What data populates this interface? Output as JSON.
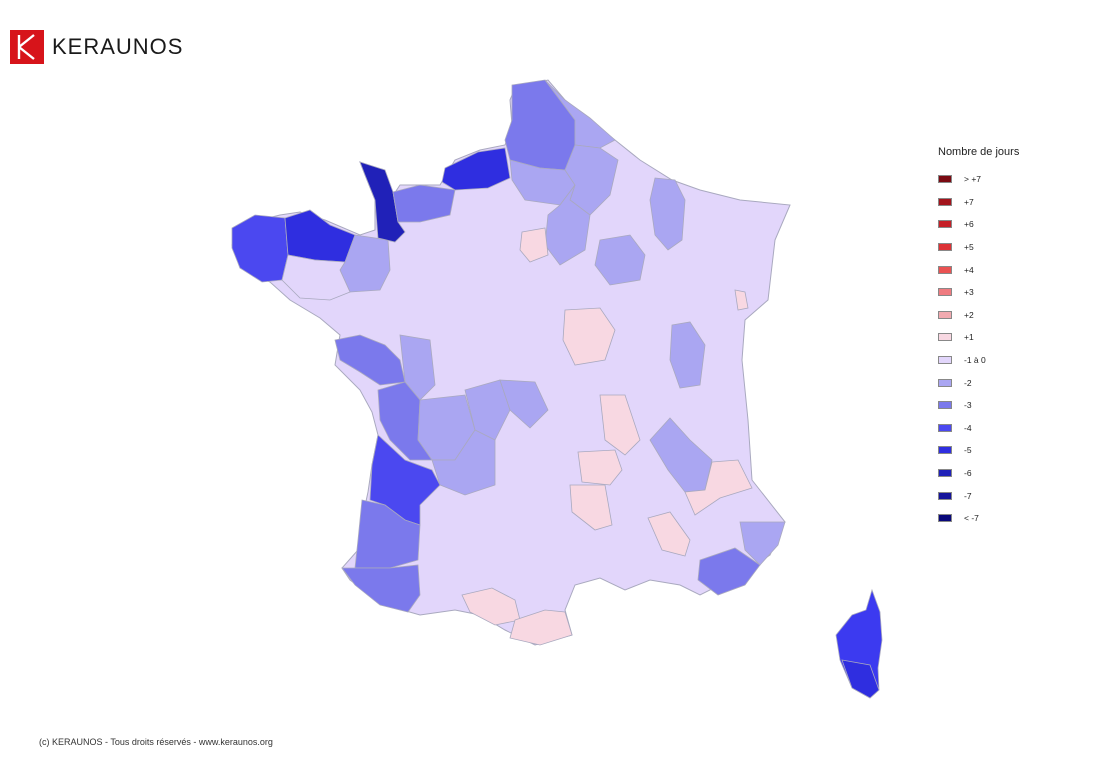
{
  "header": {
    "brand_name": "KERAUNOS",
    "logo_icon": "keraunos-k-logo-icon",
    "brand_color": "#d7141a"
  },
  "legend": {
    "title": "Nombre de jours",
    "items": [
      {
        "label": "> +7",
        "color": "#7a0a12"
      },
      {
        "label": "+7",
        "color": "#a3141c"
      },
      {
        "label": "+6",
        "color": "#c52028"
      },
      {
        "label": "+5",
        "color": "#dc3236"
      },
      {
        "label": "+4",
        "color": "#ea5252"
      },
      {
        "label": "+3",
        "color": "#ef7b80"
      },
      {
        "label": "+2",
        "color": "#f2aab0"
      },
      {
        "label": "+1",
        "color": "#f8d8e2"
      },
      {
        "label": "-1 à 0",
        "color": "#e2d6fb"
      },
      {
        "label": "-2",
        "color": "#aaa6f2"
      },
      {
        "label": "-3",
        "color": "#7b79ec"
      },
      {
        "label": "-4",
        "color": "#4b48f0"
      },
      {
        "label": "-5",
        "color": "#2f2ee0"
      },
      {
        "label": "-6",
        "color": "#2021b8"
      },
      {
        "label": "-7",
        "color": "#15149a"
      },
      {
        "label": "< -7",
        "color": "#09087a"
      }
    ]
  },
  "footer": {
    "copyright": "(c) KERAUNOS - Tous droits réservés - www.keraunos.org"
  }
}
